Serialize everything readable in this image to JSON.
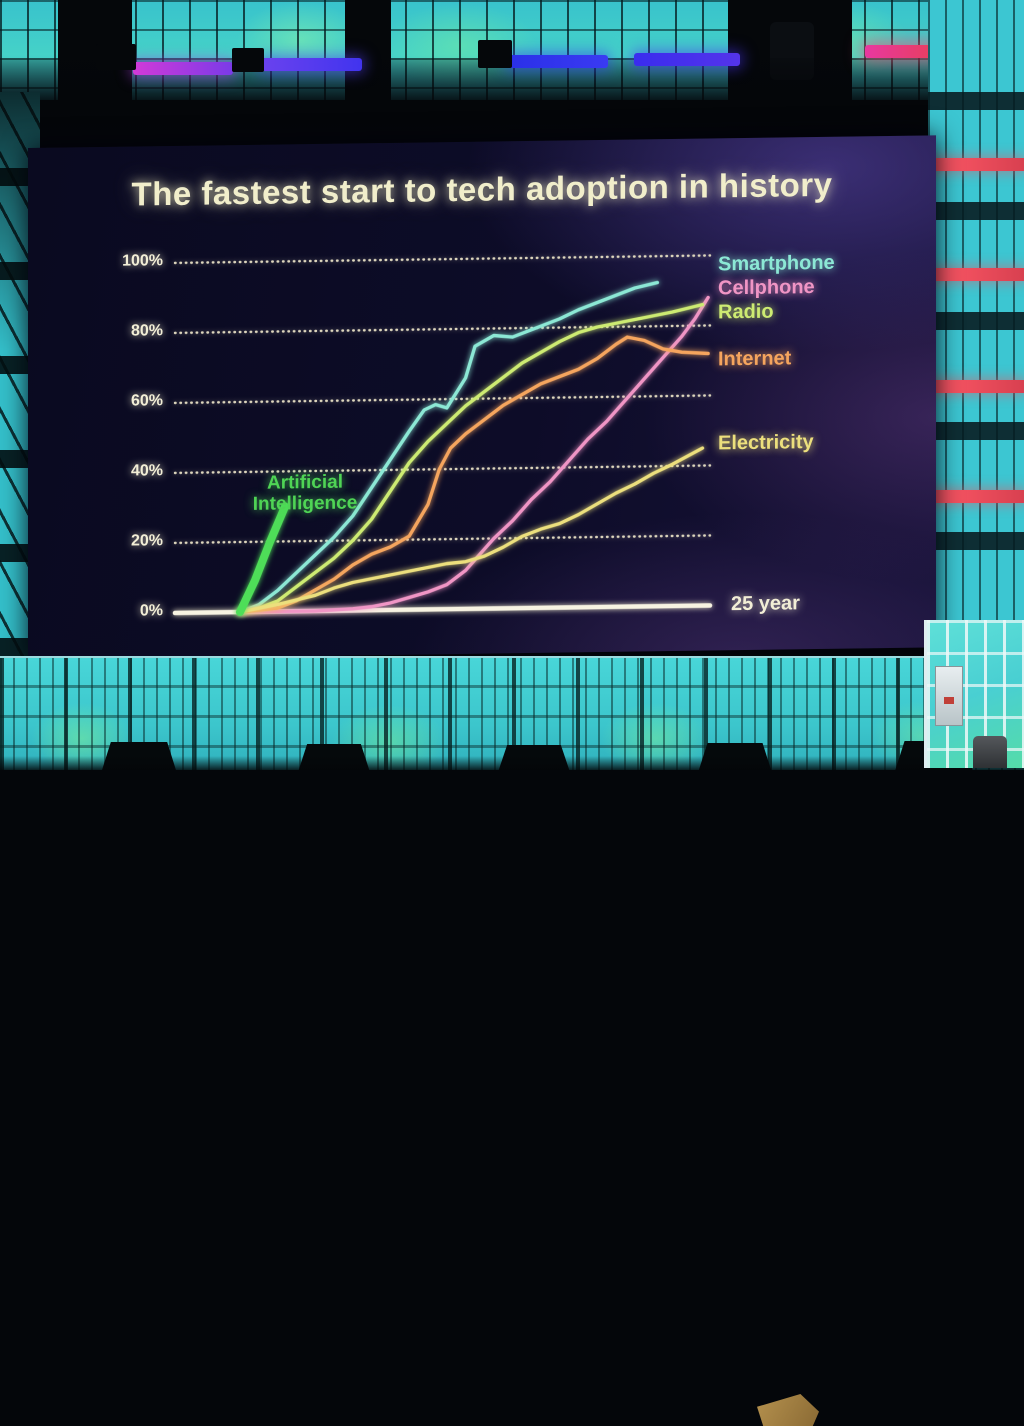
{
  "scene": {
    "setting": "conference stage: large LED slide screen surrounded by walls of glowing cyan container cubes, dark rigging trusses above",
    "cube_wall_color": "#3cc6d2",
    "cube_glow_green": "#7df0a0",
    "led_bar_colors": [
      "#d23ad8",
      "#4a38ee",
      "#2f34ea",
      "#4630ee",
      "#e8404e"
    ],
    "red_strip_color": "#f05560"
  },
  "screen": {
    "title": "The fastest start to tech adoption in history",
    "title_color": "#f1eecb",
    "background_color": "#0c0b26"
  },
  "chart_data": {
    "type": "line",
    "title": "The fastest start to tech adoption in history",
    "xlabel": "25 year",
    "ylabel": "",
    "x_unit": "years since introduction",
    "xlim": [
      0,
      25
    ],
    "ylim": [
      0,
      100
    ],
    "y_ticks": [
      0,
      20,
      40,
      60,
      80,
      100
    ],
    "y_tick_labels": [
      "0%",
      "20%",
      "40%",
      "60%",
      "80%",
      "100%"
    ],
    "grid": "dotted horizontal gridlines at every 20%, solid bright baseline at 0%",
    "legend_position": "right edge, labels colored to match lines",
    "series": [
      {
        "name": "Smartphone",
        "color": "#8ce8d5",
        "stroke_width": 3.4,
        "x": [
          0,
          1,
          2,
          3,
          4,
          5,
          6,
          7,
          8,
          9,
          9.8,
          10.4,
          11,
          12,
          12.5,
          13.5,
          14.5,
          15,
          16,
          17,
          18,
          19,
          20,
          21,
          22.2
        ],
        "values": [
          0,
          2,
          6,
          11,
          16,
          21,
          27,
          35,
          43,
          51,
          57,
          58.5,
          57.5,
          66,
          75,
          78,
          77.5,
          78.5,
          80.5,
          82.5,
          85,
          87,
          89,
          91,
          92.5
        ]
      },
      {
        "name": "Cellphone",
        "color": "#f095c5",
        "stroke_width": 3.4,
        "x": [
          0,
          2,
          4,
          6,
          7,
          8,
          9,
          10,
          11,
          12,
          13,
          13.5,
          14.5,
          15.5,
          16.5,
          17.5,
          18.5,
          19.5,
          20.5,
          21.5,
          22.5,
          23.5,
          24.2,
          24.9
        ],
        "values": [
          0,
          0,
          0,
          0.5,
          1,
          2,
          3.5,
          5,
          7,
          11,
          17,
          20,
          25,
          31,
          36,
          42,
          48,
          53,
          59,
          65,
          71,
          77,
          82,
          88
        ]
      },
      {
        "name": "Radio",
        "color": "#cdeb72",
        "stroke_width": 3.4,
        "x": [
          0,
          1,
          2,
          3,
          4,
          5,
          6,
          7,
          8,
          9,
          10,
          11,
          12,
          13,
          14,
          15,
          16,
          17,
          18,
          19,
          20,
          21,
          22,
          23,
          24.6
        ],
        "values": [
          0,
          1,
          3,
          7,
          11,
          15,
          20,
          26,
          34,
          42,
          48,
          53,
          58,
          62,
          66,
          70,
          73,
          76,
          78.5,
          80,
          81,
          82,
          83,
          84,
          86
        ]
      },
      {
        "name": "Internet",
        "color": "#f5a55e",
        "stroke_width": 3.4,
        "x": [
          0,
          1,
          2,
          3,
          4,
          5,
          6,
          7,
          8,
          9,
          10,
          10.6,
          11.2,
          12,
          13,
          14,
          15,
          16,
          17,
          18,
          19,
          20,
          20.6,
          21.5,
          22.5,
          23.5,
          24.9
        ],
        "values": [
          0,
          0.5,
          1,
          3,
          6,
          9,
          13,
          16,
          18,
          21,
          30,
          40,
          46,
          50,
          54,
          58,
          61,
          64,
          66,
          68,
          71,
          75,
          77,
          76,
          73.5,
          72.5,
          72
        ]
      },
      {
        "name": "Electricity",
        "color": "#ecdf7d",
        "stroke_width": 3.4,
        "x": [
          0,
          2,
          4,
          5,
          6,
          8,
          10,
          11,
          12,
          13,
          14,
          15,
          16,
          17,
          18,
          19,
          20,
          21,
          22,
          23,
          24.6
        ],
        "values": [
          0,
          2,
          4.5,
          6.5,
          8,
          10,
          12,
          13,
          13.5,
          15,
          17.5,
          20.5,
          22.5,
          24,
          26.5,
          29.5,
          32.5,
          35,
          38,
          40.5,
          45
        ]
      },
      {
        "name": "Artificial Intelligence",
        "color": "#4ede58",
        "stroke_width": 8,
        "x": [
          0,
          0.8,
          1.6,
          2.4
        ],
        "values": [
          0,
          9,
          20,
          30
        ]
      }
    ],
    "annotation": {
      "text": "Artificial Intelligence",
      "color": "#4fd455",
      "points_to": "thick green line reaching about 30% adoption in under 3 years"
    }
  }
}
